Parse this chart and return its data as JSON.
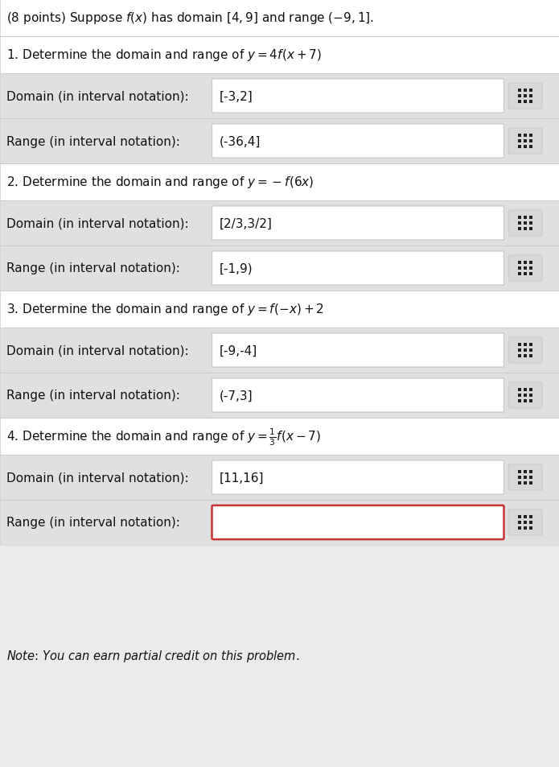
{
  "bg_color": "#ebebeb",
  "white": "#ffffff",
  "light_gray": "#e8e8e8",
  "row_bg": "#e0e0e0",
  "medium_gray": "#bbbbbb",
  "border_gray": "#cccccc",
  "red_border": "#cc3333",
  "text_dark": "#111111",
  "icon_bg": "#d8d8d8",
  "icon_square": "#222222",
  "q1_domain_label": "Domain (in interval notation):",
  "q1_domain_value": "[-3,2]",
  "q1_range_label": "Range (in interval notation):",
  "q1_range_value": "(-36,4]",
  "q2_domain_label": "Domain (in interval notation):",
  "q2_domain_value": "[2/3,3/2]",
  "q2_range_label": "Range (in interval notation):",
  "q2_range_value": "[-1,9)",
  "q3_domain_label": "Domain (in interval notation):",
  "q3_domain_value": "[-9,-4]",
  "q3_range_label": "Range (in interval notation):",
  "q3_range_value": "(-7,3]",
  "q4_domain_label": "Domain (in interval notation):",
  "q4_domain_value": "[11,16]",
  "q4_range_label": "Range (in interval notation):",
  "q4_range_value": "",
  "fig_width": 6.95,
  "fig_height": 9.54,
  "dpi": 100
}
